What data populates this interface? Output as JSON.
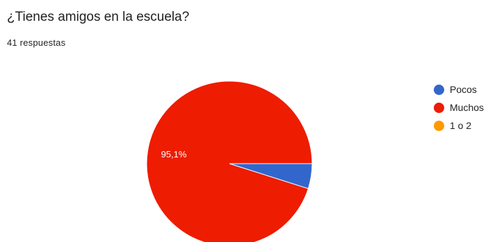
{
  "header": {
    "title": "¿Tienes amigos en la escuela?",
    "responses": "41 respuestas"
  },
  "chart_data": {
    "type": "pie",
    "slices": [
      {
        "label": "Pocos",
        "percent": 4.9,
        "color": "#3366cc"
      },
      {
        "label": "Muchos",
        "percent": 95.1,
        "color": "#ee1c00"
      },
      {
        "label": "1 o 2",
        "percent": 0,
        "color": "#ff9900"
      }
    ],
    "data_labels": [
      "",
      "95,1%",
      ""
    ],
    "legend_position": "right"
  }
}
